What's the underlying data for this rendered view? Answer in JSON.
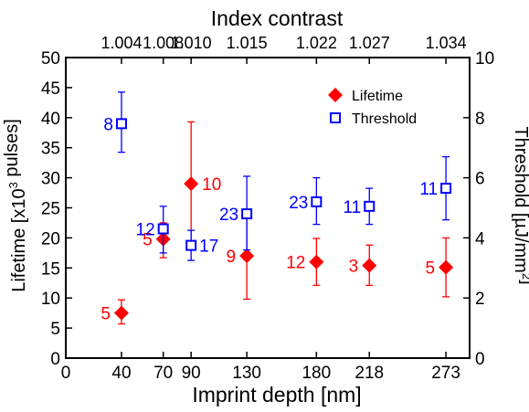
{
  "chart_data": {
    "type": "scatter",
    "top_title": "Index contrast",
    "top_tick_labels": [
      "1.004",
      "1.008",
      "1.010",
      "1.015",
      "1.022",
      "1.027",
      "1.034"
    ],
    "xlabel": "Imprint depth [nm]",
    "ylabel_left": "Lifetime [x10³ pulses]",
    "ylabel_right": "Threshold [µJ/mm²]",
    "xlim": [
      0,
      290
    ],
    "x_ticks": [
      0,
      40,
      70,
      90,
      130,
      180,
      218,
      273
    ],
    "ylim_left": [
      0,
      50
    ],
    "y_ticks_left": [
      0,
      5,
      10,
      15,
      20,
      25,
      30,
      35,
      40,
      45,
      50
    ],
    "ylim_right": [
      0,
      10
    ],
    "y_ticks_right": [
      0,
      2,
      4,
      6,
      8,
      10
    ],
    "legend_position": "top-right",
    "colors": {
      "lifetime": "#ff0000",
      "threshold": "#0000ff",
      "axis": "#000000"
    },
    "series": [
      {
        "name": "Lifetime",
        "axis": "left",
        "marker": "diamond",
        "points": [
          {
            "x": 40,
            "y": 7.5,
            "err_low": 5.7,
            "err_high": 9.7,
            "label": "5"
          },
          {
            "x": 70,
            "y": 19.8,
            "err_low": 16.7,
            "err_high": 22.5,
            "label": "5"
          },
          {
            "x": 90,
            "y": 29.0,
            "err_low": 18.2,
            "err_high": 39.3,
            "label": "10"
          },
          {
            "x": 130,
            "y": 17.0,
            "err_low": 9.8,
            "err_high": 24.3,
            "label": "9"
          },
          {
            "x": 180,
            "y": 16.0,
            "err_low": 12.1,
            "err_high": 19.9,
            "label": "12"
          },
          {
            "x": 218,
            "y": 15.4,
            "err_low": 12.1,
            "err_high": 18.8,
            "label": "3"
          },
          {
            "x": 273,
            "y": 15.1,
            "err_low": 10.2,
            "err_high": 20.0,
            "label": "5"
          }
        ]
      },
      {
        "name": "Threshold",
        "axis": "right",
        "marker": "open-square",
        "points": [
          {
            "x": 40,
            "y": 7.8,
            "err_low": 6.85,
            "err_high": 8.85,
            "label": "8"
          },
          {
            "x": 70,
            "y": 4.3,
            "err_low": 3.5,
            "err_high": 5.05,
            "label": "12"
          },
          {
            "x": 90,
            "y": 3.75,
            "err_low": 3.25,
            "err_high": 4.25,
            "label": "17"
          },
          {
            "x": 130,
            "y": 4.8,
            "err_low": 3.6,
            "err_high": 6.05,
            "label": "23"
          },
          {
            "x": 180,
            "y": 5.2,
            "err_low": 4.45,
            "err_high": 6.0,
            "label": "23"
          },
          {
            "x": 218,
            "y": 5.05,
            "err_low": 4.45,
            "err_high": 5.65,
            "label": "11"
          },
          {
            "x": 273,
            "y": 5.65,
            "err_low": 4.6,
            "err_high": 6.7,
            "label": "11"
          }
        ]
      }
    ]
  }
}
